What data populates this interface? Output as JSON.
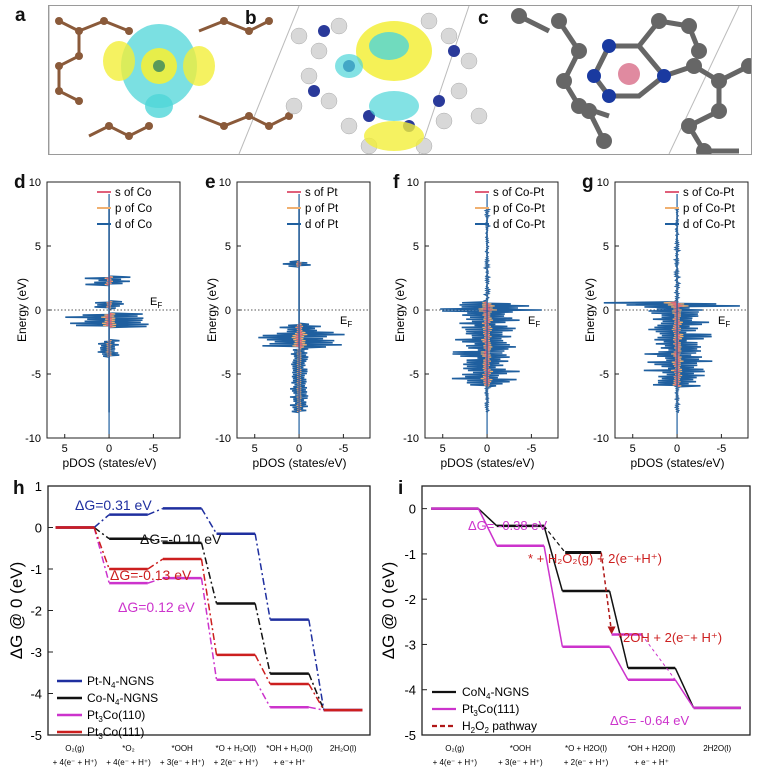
{
  "panel_letters": {
    "a": "a",
    "b": "b",
    "c": "c",
    "d": "d",
    "e": "e",
    "f": "f",
    "g": "g",
    "h": "h",
    "i": "i"
  },
  "pdos": {
    "ylabel": "Energy (eV)",
    "xlabel": "pDOS (states/eV)",
    "yticks": [
      "10",
      "5",
      "0",
      "-5",
      "-10"
    ],
    "xticks": [
      "5",
      "0",
      "-5"
    ],
    "ef_label": "E",
    "ef_sub": "F",
    "panels": [
      {
        "id": "d",
        "legend": [
          "s of Co",
          "p of Co",
          "d of Co"
        ]
      },
      {
        "id": "e",
        "legend": [
          "s of Pt",
          "p of Pt",
          "d of Pt"
        ]
      },
      {
        "id": "f",
        "legend": [
          "s of Co-Pt",
          "p of Co-Pt",
          "d of Co-Pt"
        ]
      },
      {
        "id": "g",
        "legend": [
          "s of Co-Pt",
          "p of Co-Pt",
          "d of Co-Pt"
        ]
      }
    ],
    "colors": {
      "s": "#e0607a",
      "p": "#f0b070",
      "d": "#1f5f9f"
    }
  },
  "chart_data": [
    {
      "type": "line",
      "panel": "h",
      "ylabel": "ΔG @ 0 (eV)",
      "ylim": [
        -5,
        1
      ],
      "yticks": [
        "1",
        "0",
        "-1",
        "-2",
        "-3",
        "-4",
        "-5"
      ],
      "steps": [
        {
          "top": "O₂(g)",
          "bottom": "+ 4(e⁻ + H⁺)"
        },
        {
          "top": "*O₂",
          "bottom": "+ 4(e⁻ + H⁺)"
        },
        {
          "top": "*OOH",
          "bottom": "+ 3(e⁻ + H⁺)"
        },
        {
          "top": "*O + H₂O(l)",
          "bottom": "+ 2(e⁻ + H⁺)"
        },
        {
          "top": "*OH + H₂O(l)",
          "bottom": "+ e⁻+ H⁺"
        },
        {
          "top": "2H₂O(l)",
          "bottom": ""
        }
      ],
      "series": [
        {
          "name": "Pt-N4-NGNS",
          "color": "#1f2f9f",
          "values": [
            0,
            0.31,
            0.46,
            -0.15,
            -2.22,
            -4.4
          ]
        },
        {
          "name": "Co-N4-NGNS",
          "color": "#111111",
          "values": [
            0,
            -0.27,
            -0.37,
            -1.83,
            -3.52,
            -4.4
          ]
        },
        {
          "name": "Pt3Co(110)",
          "color": "#cc33cc",
          "values": [
            0,
            -1.34,
            -1.22,
            -3.67,
            -4.33,
            -4.4
          ]
        },
        {
          "name": "Pt3Co(111)",
          "color": "#cc1f1f",
          "values": [
            0,
            -1.0,
            -0.76,
            -3.07,
            -3.77,
            -4.4
          ]
        }
      ],
      "legend": [
        {
          "label": "Pt-N",
          "sub": "4",
          "rest": "-NGNS",
          "color": "#1f2f9f"
        },
        {
          "label": "Co-N",
          "sub": "4",
          "rest": "-NGNS",
          "color": "#111111"
        },
        {
          "label": "Pt",
          "sub": "3",
          "rest": "Co(110)",
          "color": "#cc33cc"
        },
        {
          "label": "Pt",
          "sub": "3",
          "rest": "Co(111)",
          "color": "#cc1f1f"
        }
      ],
      "annotations": [
        {
          "text": "ΔG=0.31 eV",
          "color": "#1f2f9f"
        },
        {
          "text": "ΔG=-0.10 eV",
          "color": "#111111"
        },
        {
          "text": "ΔG=-0.13 eV",
          "color": "#cc1f1f"
        },
        {
          "text": "ΔG=0.12 eV",
          "color": "#cc33cc"
        }
      ]
    },
    {
      "type": "line",
      "panel": "i",
      "ylabel": "ΔG @ 0 (eV)",
      "ylim": [
        -5,
        0.5
      ],
      "yticks": [
        "0",
        "-1",
        "-2",
        "-3",
        "-4",
        "-5"
      ],
      "steps": [
        {
          "top": "O₂(g)",
          "bottom": "+ 4(e⁻ + H⁺)"
        },
        {
          "top": "*OOH",
          "bottom": "+ 3(e⁻ + H⁺)"
        },
        {
          "top": "*O + H2O(l)",
          "bottom": "+ 2(e⁻ + H⁺)"
        },
        {
          "top": "*OH + H2O(l)",
          "bottom": "+ e⁻ + H⁺"
        },
        {
          "top": "2H2O(l)",
          "bottom": ""
        }
      ],
      "series": [
        {
          "name": "CoN4-NGNS",
          "color": "#111111",
          "values": [
            0,
            -0.38,
            -1.82,
            -3.52,
            -4.4
          ]
        },
        {
          "name": "Pt3Co(111)",
          "color": "#cc33cc",
          "values": [
            0,
            -0.82,
            -3.05,
            -3.78,
            -4.4
          ]
        }
      ],
      "h2o2_pathway": {
        "name": "H2O2 pathway",
        "color": "#b01818",
        "values": [
          -0.38,
          -0.97,
          -2.78
        ]
      },
      "legend": [
        {
          "label": "CoN",
          "sub": "4",
          "rest": "-NGNS",
          "color": "#111111",
          "style": "solid"
        },
        {
          "label": "Pt",
          "sub": "3",
          "rest": "Co(111)",
          "color": "#cc33cc",
          "style": "solid"
        },
        {
          "label": "H",
          "sub": "2",
          "rest": "O",
          "sub2": "2",
          "rest2": " pathway",
          "color": "#b01818",
          "style": "dashed"
        }
      ],
      "annotations": [
        {
          "text": "ΔG= -0.38 eV",
          "color": "#cc33cc"
        },
        {
          "text": "* + H₂O₂(g) + 2(e⁻+H⁺)",
          "color": "#cc1f1f"
        },
        {
          "text": "*2OH + 2(e⁻+ H⁺)",
          "color": "#cc1f1f"
        },
        {
          "text": "ΔG= -0.64 eV",
          "color": "#cc33cc"
        }
      ]
    }
  ]
}
